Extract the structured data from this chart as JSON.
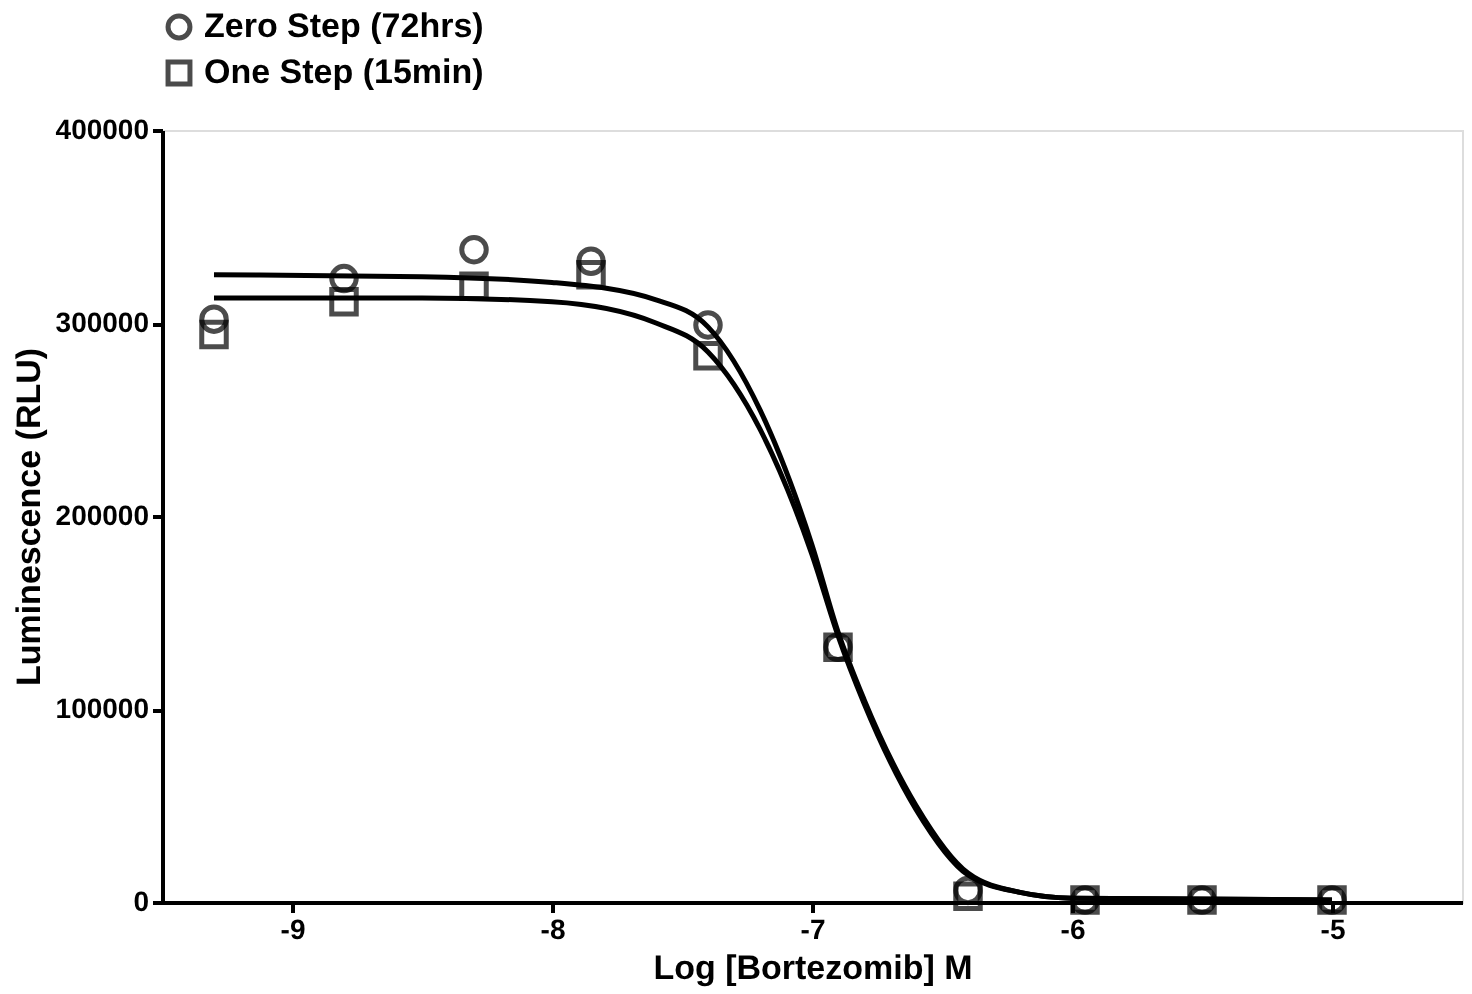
{
  "chart_data": {
    "type": "scatter",
    "xlabel": "Log [Bortezomib] M",
    "ylabel": "Luminescence (RLU)",
    "xlim": [
      -9.5,
      -4.5
    ],
    "xticks": [
      -9,
      -8,
      -7,
      -6,
      -5
    ],
    "ylim": [
      0,
      400000
    ],
    "yticks": [
      0,
      100000,
      200000,
      300000,
      400000
    ],
    "grid": false,
    "legend": "top",
    "series": [
      {
        "name": "Zero Step (72hrs)",
        "marker": "circle",
        "color": "#000000",
        "x": [
          -9.3,
          -8.8,
          -8.3,
          -7.85,
          -7.4,
          -6.9,
          -6.4,
          -5.95,
          -5.5,
          -5.0
        ],
        "values": [
          302000,
          323000,
          338000,
          332000,
          299000,
          132000,
          6000,
          1000,
          1000,
          1000
        ]
      },
      {
        "name": "One Step (15min)",
        "marker": "square",
        "color": "#000000",
        "x": [
          -9.3,
          -8.8,
          -8.3,
          -7.85,
          -7.4,
          -6.9,
          -6.4,
          -5.95,
          -5.5,
          -5.0
        ],
        "values": [
          294000,
          311000,
          319000,
          325000,
          283000,
          132000,
          3000,
          1000,
          1000,
          1000
        ]
      },
      {
        "type": "line",
        "color": "#000000",
        "x": [
          -9.3,
          -8.5,
          -8.0,
          -7.6,
          -7.4,
          -7.2,
          -7.0,
          -6.9,
          -6.8,
          -6.6,
          -6.4,
          -6.2,
          -6.0,
          -5.0
        ],
        "values": [
          325000,
          324000,
          321000,
          312000,
          298000,
          255000,
          185000,
          140000,
          105000,
          50000,
          15000,
          5000,
          2000,
          1000
        ]
      },
      {
        "type": "line",
        "color": "#000000",
        "x": [
          -9.3,
          -8.5,
          -8.0,
          -7.6,
          -7.4,
          -7.2,
          -7.0,
          -6.9,
          -6.8,
          -6.6,
          -6.4,
          -6.2,
          -6.0,
          -5.0
        ],
        "values": [
          313000,
          313000,
          311000,
          300000,
          285000,
          245000,
          180000,
          138000,
          103000,
          48000,
          14000,
          5000,
          2000,
          1000
        ]
      }
    ]
  }
}
